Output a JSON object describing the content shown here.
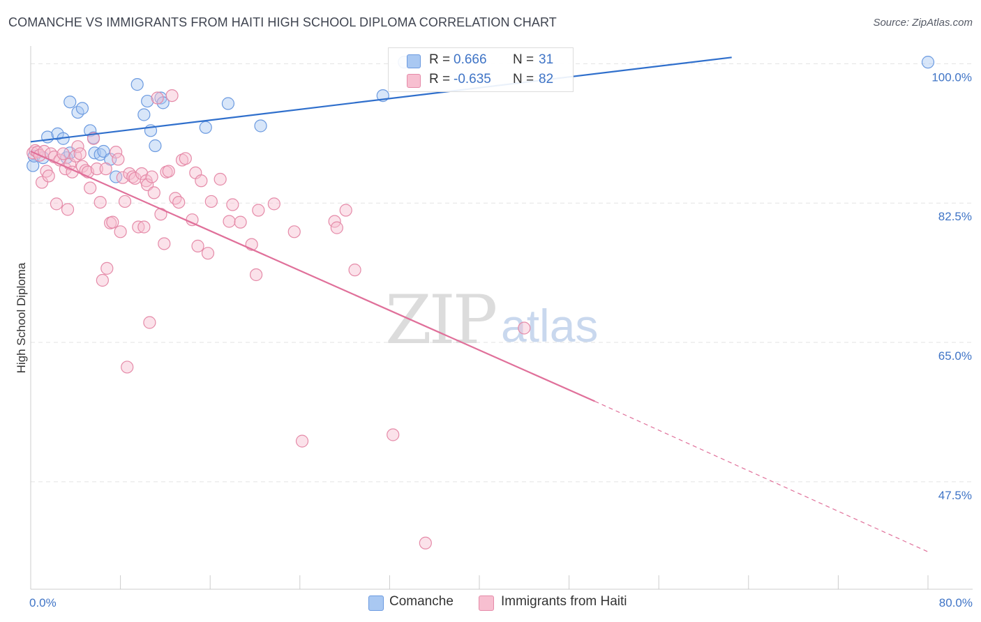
{
  "title": "COMANCHE VS IMMIGRANTS FROM HAITI HIGH SCHOOL DIPLOMA CORRELATION CHART",
  "source": "Source: ZipAtlas.com",
  "watermark": {
    "zip": "ZIP",
    "atlas": "atlas"
  },
  "legend": {
    "rows": [
      {
        "r_label": "R =",
        "r_value": "0.666",
        "n_label": "N =",
        "n_value": "31",
        "color": "#a9c8f2",
        "border": "#6b9ae0"
      },
      {
        "r_label": "R =",
        "r_value": "-0.635",
        "n_label": "N =",
        "n_value": "82",
        "color": "#f7bfd0",
        "border": "#e58aa8"
      }
    ]
  },
  "bottom_legend": [
    {
      "label": "Comanche",
      "color": "#a9c8f2",
      "border": "#6b9ae0"
    },
    {
      "label": "Immigrants from Haiti",
      "color": "#f7bfd0",
      "border": "#e58aa8"
    }
  ],
  "chart_data": {
    "type": "scatter",
    "ylabel": "High School Diploma",
    "xlabel": "",
    "xlim": [
      0,
      80
    ],
    "ylim": [
      34,
      101
    ],
    "x_tick_labels": [
      {
        "value": 0,
        "label": "0.0%"
      },
      {
        "value": 80,
        "label": "80.0%"
      }
    ],
    "y_tick_labels": [
      {
        "value": 100,
        "label": "100.0%"
      },
      {
        "value": 82.5,
        "label": "82.5%"
      },
      {
        "value": 65,
        "label": "65.0%"
      },
      {
        "value": 47.5,
        "label": "47.5%"
      }
    ],
    "grid": true,
    "series": [
      {
        "name": "Comanche",
        "color": "#a9c8f2",
        "stroke": "#6b9ae0",
        "line_color": "#2f6fcc",
        "trend": {
          "x0": 0,
          "y0": 90.2,
          "x1": 62.5,
          "y1": 100.8,
          "dashed_to": null
        },
        "points": [
          [
            0.2,
            87.2
          ],
          [
            0.3,
            88.4
          ],
          [
            1.1,
            88.2
          ],
          [
            1.5,
            90.8
          ],
          [
            2.4,
            91.2
          ],
          [
            2.9,
            90.6
          ],
          [
            3.2,
            88.2
          ],
          [
            3.5,
            88.8
          ],
          [
            3.5,
            95.2
          ],
          [
            4.2,
            93.9
          ],
          [
            4.6,
            94.4
          ],
          [
            5.3,
            91.6
          ],
          [
            5.6,
            90.7
          ],
          [
            5.7,
            88.8
          ],
          [
            6.2,
            88.6
          ],
          [
            6.5,
            89.0
          ],
          [
            7.1,
            88.0
          ],
          [
            7.6,
            85.8
          ],
          [
            9.5,
            97.4
          ],
          [
            10.1,
            93.6
          ],
          [
            10.4,
            95.3
          ],
          [
            10.7,
            91.6
          ],
          [
            11.1,
            89.7
          ],
          [
            11.6,
            95.7
          ],
          [
            11.8,
            95.1
          ],
          [
            15.6,
            92.0
          ],
          [
            17.6,
            95.0
          ],
          [
            20.5,
            92.2
          ],
          [
            31.4,
            96.0
          ],
          [
            33.3,
            100.2
          ],
          [
            80.0,
            100.2
          ]
        ]
      },
      {
        "name": "Immigrants from Haiti",
        "color": "#f7bfd0",
        "stroke": "#e58aa8",
        "line_color": "#e0709a",
        "trend": {
          "x0": 0,
          "y0": 89.0,
          "x1": 50.3,
          "y1": 57.6,
          "dashed_to": {
            "x": 80.0,
            "y": 38.7
          }
        },
        "points": [
          [
            0.2,
            88.8
          ],
          [
            0.4,
            89.1
          ],
          [
            0.6,
            88.9
          ],
          [
            0.8,
            88.5
          ],
          [
            1.0,
            85.1
          ],
          [
            1.2,
            89.0
          ],
          [
            1.4,
            86.5
          ],
          [
            1.6,
            85.9
          ],
          [
            1.8,
            88.7
          ],
          [
            2.1,
            88.3
          ],
          [
            2.3,
            82.4
          ],
          [
            2.6,
            87.9
          ],
          [
            2.9,
            88.7
          ],
          [
            3.1,
            86.8
          ],
          [
            3.3,
            81.7
          ],
          [
            3.5,
            87.4
          ],
          [
            3.7,
            86.4
          ],
          [
            4.0,
            88.4
          ],
          [
            4.2,
            89.6
          ],
          [
            4.4,
            88.7
          ],
          [
            4.6,
            87.1
          ],
          [
            4.9,
            86.6
          ],
          [
            5.1,
            86.4
          ],
          [
            5.3,
            84.4
          ],
          [
            5.6,
            90.6
          ],
          [
            5.9,
            86.8
          ],
          [
            6.2,
            82.6
          ],
          [
            6.4,
            72.8
          ],
          [
            6.7,
            86.8
          ],
          [
            6.8,
            74.3
          ],
          [
            7.1,
            80.0
          ],
          [
            7.3,
            80.1
          ],
          [
            7.6,
            88.9
          ],
          [
            7.8,
            88.0
          ],
          [
            8.0,
            78.9
          ],
          [
            8.2,
            85.7
          ],
          [
            8.4,
            82.7
          ],
          [
            8.6,
            61.9
          ],
          [
            8.8,
            86.2
          ],
          [
            9.1,
            85.8
          ],
          [
            9.3,
            85.6
          ],
          [
            9.6,
            79.5
          ],
          [
            9.9,
            86.2
          ],
          [
            10.1,
            79.5
          ],
          [
            10.3,
            85.3
          ],
          [
            10.4,
            84.8
          ],
          [
            10.6,
            67.5
          ],
          [
            10.8,
            85.8
          ],
          [
            11.0,
            83.8
          ],
          [
            11.3,
            95.7
          ],
          [
            11.6,
            81.1
          ],
          [
            11.9,
            77.4
          ],
          [
            12.1,
            86.4
          ],
          [
            12.3,
            86.5
          ],
          [
            12.6,
            96.0
          ],
          [
            12.9,
            83.1
          ],
          [
            13.2,
            82.6
          ],
          [
            13.5,
            87.9
          ],
          [
            13.8,
            88.1
          ],
          [
            14.4,
            80.4
          ],
          [
            14.7,
            86.3
          ],
          [
            14.9,
            77.1
          ],
          [
            15.2,
            85.3
          ],
          [
            15.8,
            76.2
          ],
          [
            16.1,
            82.7
          ],
          [
            16.9,
            85.5
          ],
          [
            17.7,
            80.2
          ],
          [
            18.0,
            82.3
          ],
          [
            18.7,
            80.1
          ],
          [
            19.7,
            77.3
          ],
          [
            20.1,
            73.5
          ],
          [
            20.3,
            81.6
          ],
          [
            21.7,
            82.4
          ],
          [
            23.5,
            78.9
          ],
          [
            24.2,
            52.6
          ],
          [
            27.1,
            80.2
          ],
          [
            27.3,
            79.4
          ],
          [
            28.1,
            81.6
          ],
          [
            28.9,
            74.1
          ],
          [
            32.3,
            53.4
          ],
          [
            35.2,
            39.8
          ],
          [
            44.0,
            66.8
          ]
        ]
      }
    ]
  }
}
